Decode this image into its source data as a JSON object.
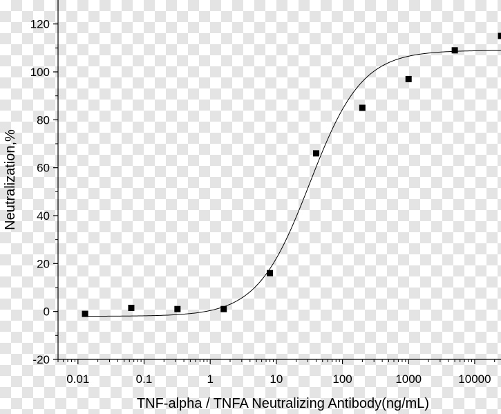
{
  "chart_data": {
    "type": "scatter",
    "title": "",
    "xlabel": "TNF-alpha / TNFA Neutralizing Antibody(ng/mL)",
    "ylabel": "Neutralization,%",
    "x_scale": "log",
    "xlim": [
      0.005,
      25000
    ],
    "ylim": [
      -20,
      130
    ],
    "x_ticks": [
      0.01,
      0.1,
      1,
      10,
      100,
      1000,
      10000
    ],
    "x_tick_labels": [
      "0.01",
      "0.1",
      "1",
      "10",
      "100",
      "1000",
      "10000"
    ],
    "y_ticks": [
      -20,
      0,
      20,
      40,
      60,
      80,
      100,
      120
    ],
    "y_tick_labels": [
      "-20",
      "0",
      "20",
      "40",
      "60",
      "80",
      "100",
      "120"
    ],
    "grid": false,
    "legend": "none",
    "series": [
      {
        "marker": "square",
        "color": "#000000",
        "points": [
          {
            "x": 0.0128,
            "y": -1
          },
          {
            "x": 0.064,
            "y": 1.5
          },
          {
            "x": 0.32,
            "y": 1
          },
          {
            "x": 1.6,
            "y": 1
          },
          {
            "x": 8,
            "y": 16
          },
          {
            "x": 40,
            "y": 66
          },
          {
            "x": 200,
            "y": 85
          },
          {
            "x": 1000,
            "y": 97
          },
          {
            "x": 5000,
            "y": 109
          },
          {
            "x": 25000,
            "y": 115
          }
        ]
      }
    ],
    "fit_curve": {
      "type": "4-parameter logistic",
      "color": "#000000",
      "bottom": -2,
      "top": 109,
      "ec50": 32,
      "hill": 1.1
    }
  }
}
